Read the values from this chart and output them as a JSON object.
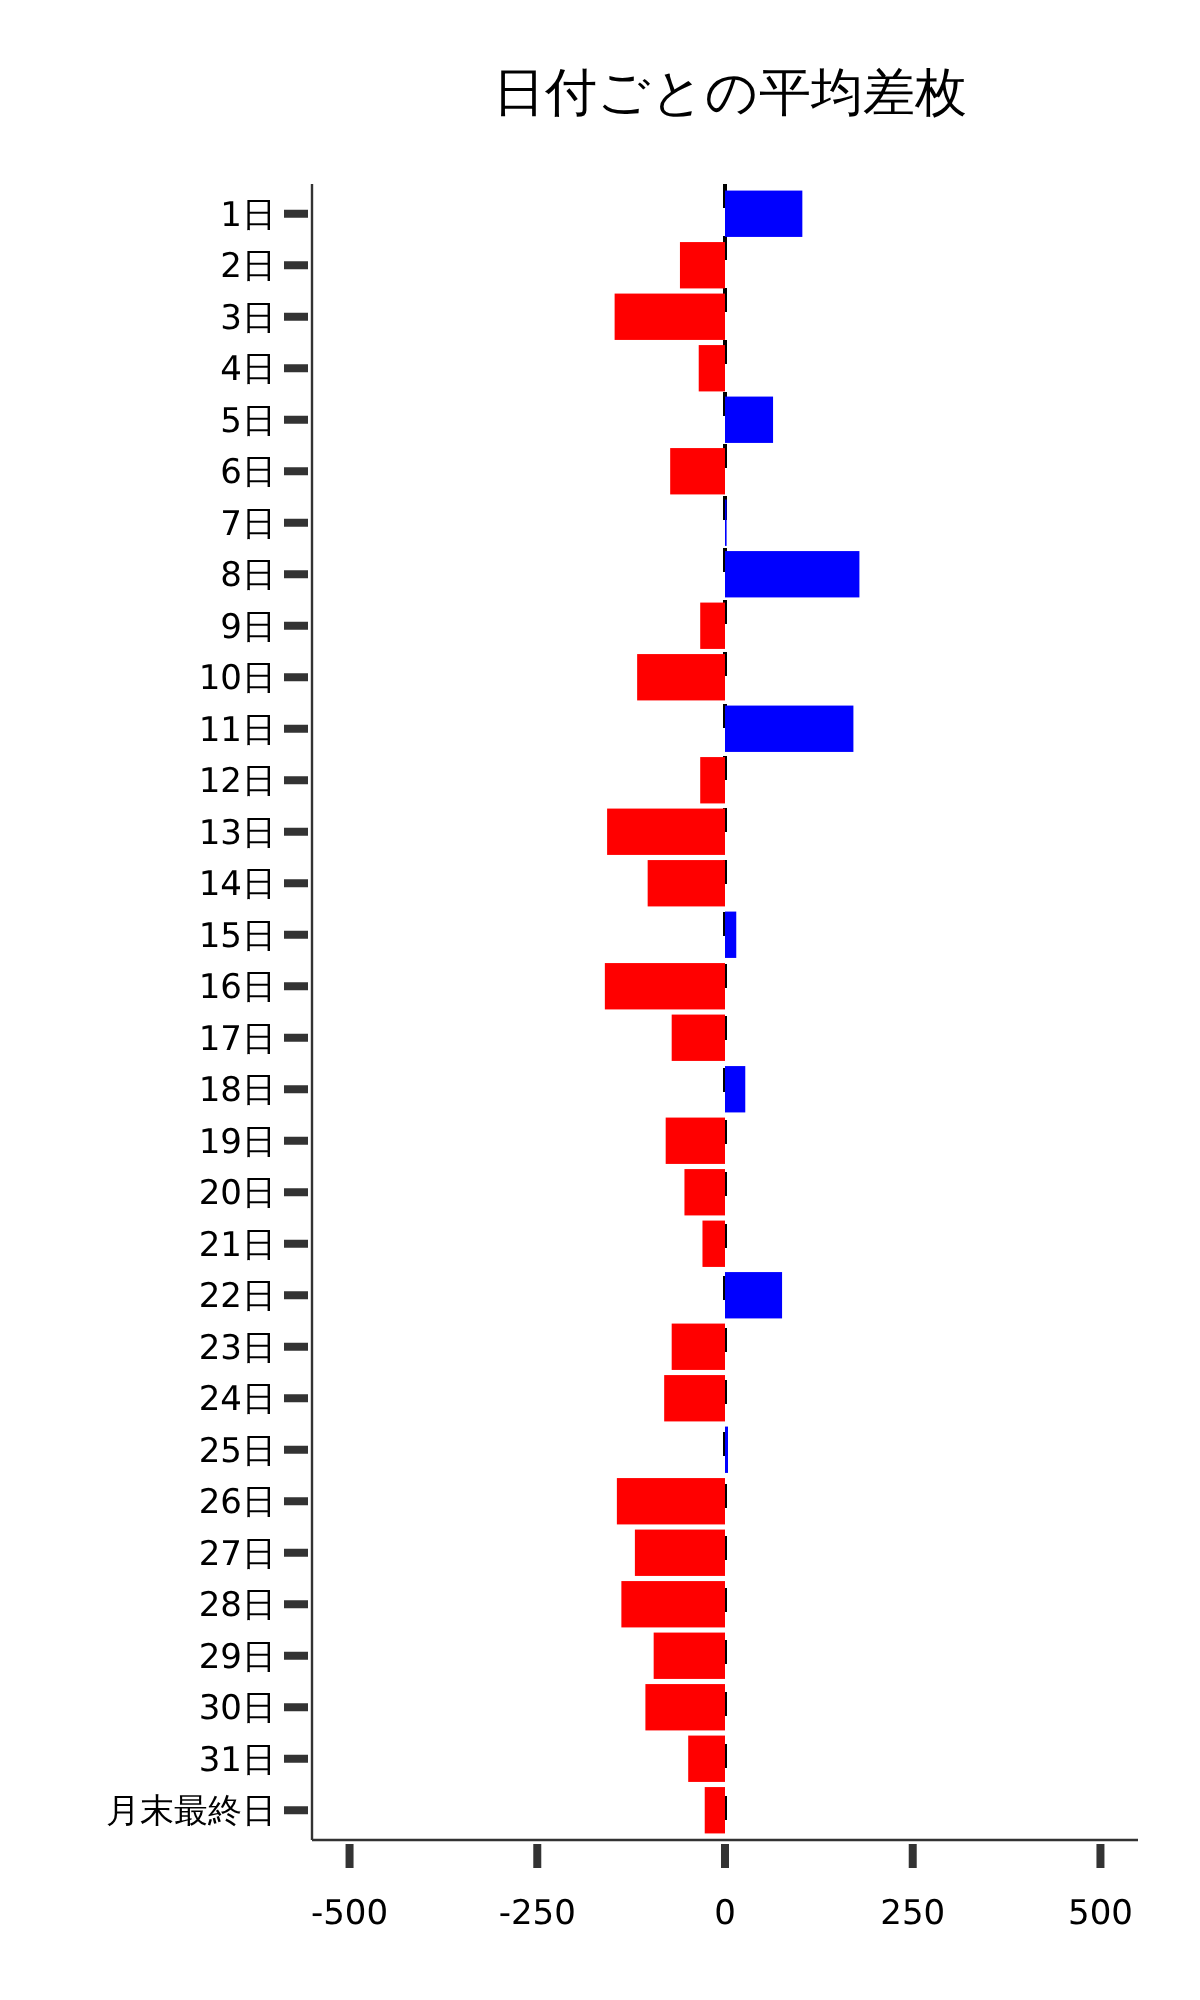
{
  "chart_data": {
    "type": "bar",
    "orientation": "horizontal",
    "title": "日付ごとの平均差枚",
    "categories": [
      "1日",
      "2日",
      "3日",
      "4日",
      "5日",
      "6日",
      "7日",
      "8日",
      "9日",
      "10日",
      "11日",
      "12日",
      "13日",
      "14日",
      "15日",
      "16日",
      "17日",
      "18日",
      "19日",
      "20日",
      "21日",
      "22日",
      "23日",
      "24日",
      "25日",
      "26日",
      "27日",
      "28日",
      "29日",
      "30日",
      "31日",
      "月末最終日"
    ],
    "values": [
      103,
      -60,
      -147,
      -35,
      64,
      -73,
      1,
      179,
      -33,
      -117,
      171,
      -33,
      -157,
      -103,
      15,
      -160,
      -71,
      27,
      -79,
      -54,
      -30,
      76,
      -71,
      -81,
      4,
      -144,
      -120,
      -138,
      -95,
      -106,
      -49,
      -27
    ],
    "colors": [
      "#0000ff",
      "#ff0000",
      "#ff0000",
      "#ff0000",
      "#0000ff",
      "#ff0000",
      "#0000ff",
      "#0000ff",
      "#ff0000",
      "#ff0000",
      "#0000ff",
      "#ff0000",
      "#ff0000",
      "#ff0000",
      "#0000ff",
      "#ff0000",
      "#ff0000",
      "#0000ff",
      "#ff0000",
      "#ff0000",
      "#ff0000",
      "#0000ff",
      "#ff0000",
      "#ff0000",
      "#0000ff",
      "#ff0000",
      "#ff0000",
      "#ff0000",
      "#ff0000",
      "#ff0000",
      "#ff0000",
      "#ff0000"
    ],
    "xlim": [
      -550,
      550
    ],
    "xticks": [
      -500,
      -250,
      0,
      250,
      500
    ],
    "ref_lines": [
      {
        "axis": "x",
        "value": 0,
        "color": "#000000",
        "line_style": "dashed"
      }
    ],
    "grid": false
  }
}
